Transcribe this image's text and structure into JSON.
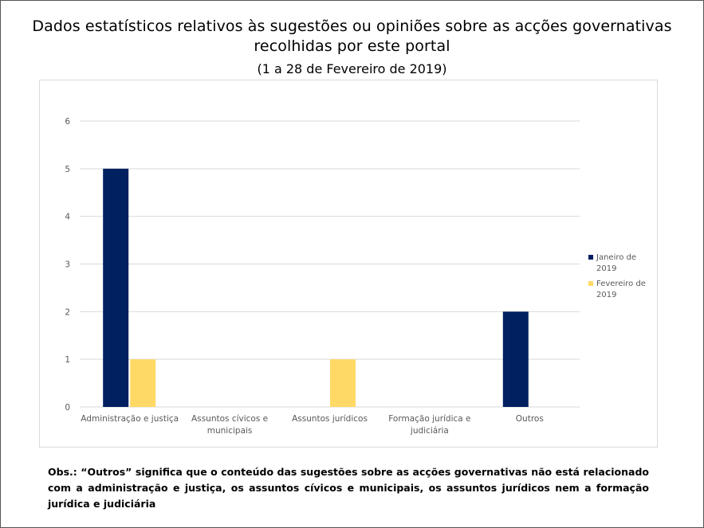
{
  "header": {
    "title": "Dados estatísticos relativos às sugestões ou opiniões sobre as acções governativas recolhidas por este portal",
    "subtitle": "(1 a 28 de Fevereiro de 2019)"
  },
  "chart_data": {
    "type": "bar",
    "title": "",
    "xlabel": "",
    "ylabel": "",
    "ylim": [
      0,
      6
    ],
    "yticks": [
      0,
      1,
      2,
      3,
      4,
      5,
      6
    ],
    "grid": true,
    "legend_position": "right",
    "categories": [
      [
        "Administração e justiça"
      ],
      [
        "Assuntos cívicos e",
        "municipais"
      ],
      [
        "Assuntos jurídicos"
      ],
      [
        "Formação jurídica e",
        "judiciária"
      ],
      [
        "Outros"
      ]
    ],
    "series": [
      {
        "name": [
          "Janeiro de",
          "2019"
        ],
        "color": "#002060",
        "values": [
          5,
          0,
          0,
          0,
          2
        ]
      },
      {
        "name": [
          "Fevereiro de",
          "2019"
        ],
        "color": "#ffd966",
        "values": [
          1,
          0,
          1,
          0,
          0
        ]
      }
    ]
  },
  "note": "Obs.: “Outros” significa que o conteúdo das sugestões sobre as acções governativas não está relacionado com a administração e justiça, os assuntos cívicos e municipais, os assuntos jurídicos nem a formação jurídica e judiciária"
}
